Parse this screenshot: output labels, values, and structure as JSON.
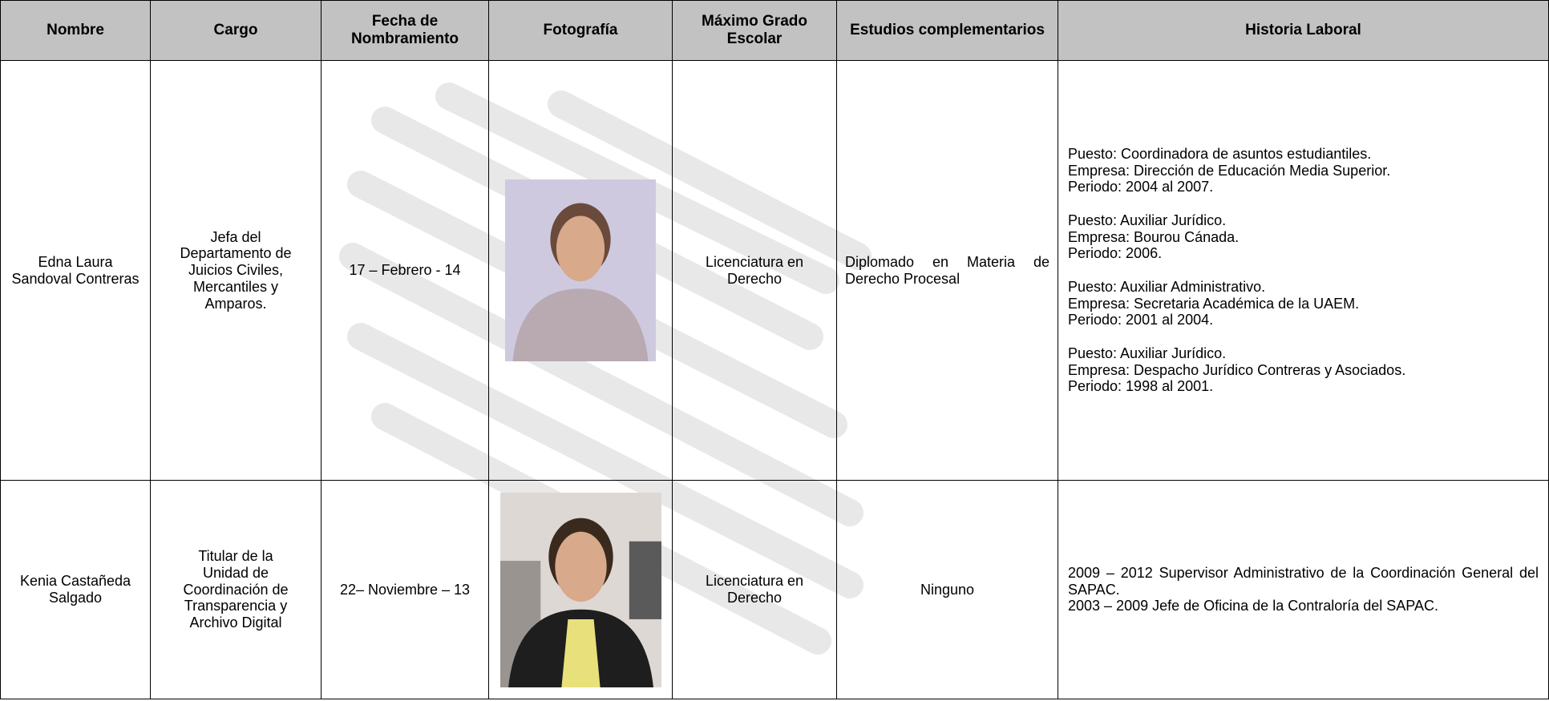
{
  "table": {
    "headers": [
      "Nombre",
      "Cargo",
      "Fecha de Nombramiento",
      "Fotografía",
      "Máximo Grado Escolar",
      "Estudios complementarios",
      "Historia Laboral"
    ],
    "rows": [
      {
        "nombre": "Edna Laura Sandoval Contreras",
        "cargo": "Jefa del Departamento de Juicios Civiles, Mercantiles y Amparos.",
        "fecha": "17 – Febrero - 14",
        "grado": "Licenciatura en Derecho",
        "estudios": "Diplomado en Materia de Derecho Procesal",
        "historia": [
          [
            "Puesto: Coordinadora de asuntos estudiantiles.",
            "Empresa: Dirección de Educación Media Superior.",
            "Periodo: 2004 al 2007."
          ],
          [
            "Puesto: Auxiliar Jurídico.",
            "Empresa: Bourou Cánada.",
            "Periodo: 2006."
          ],
          [
            "Puesto: Auxiliar Administrativo.",
            "Empresa: Secretaria Académica de la UAEM.",
            "Periodo: 2001 al 2004."
          ],
          [
            "Puesto: Auxiliar Jurídico.",
            "Empresa: Despacho Jurídico Contreras y Asociados.",
            "Periodo: 1998 al 2001."
          ]
        ]
      },
      {
        "nombre": "Kenia Castañeda Salgado",
        "cargo": "Titular de la Unidad de Coordinación de Transparencia y Archivo Digital",
        "fecha": "22– Noviembre – 13",
        "grado": "Licenciatura en Derecho",
        "estudios": "Ninguno",
        "historia": [
          [
            "2009 – 2012 Supervisor Administrativo de la Coordinación General del SAPAC."
          ],
          [
            "2003 – 2009 Jefe de Oficina de la Contraloría del SAPAC."
          ]
        ]
      }
    ]
  }
}
